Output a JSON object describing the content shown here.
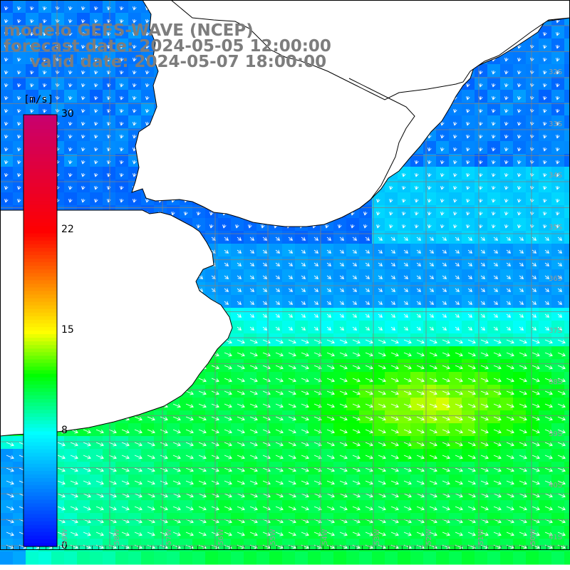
{
  "titles": {
    "line1": "modelo GEFS-WAVE (NCEP)",
    "line2": "forecast date: 2024-05-05 12:00:00",
    "line3": "valid date: 2024-05-07 18:00:00"
  },
  "colorbar": {
    "unit": "[m/s]",
    "ticks": [
      {
        "value": 30,
        "label": "30"
      },
      {
        "value": 22,
        "label": "22"
      },
      {
        "value": 15,
        "label": "15"
      },
      {
        "value": 8,
        "label": "8"
      },
      {
        "value": 0,
        "label": "0"
      }
    ],
    "color_stops": [
      {
        "value": 0,
        "color": "#0000ff"
      },
      {
        "value": 4,
        "color": "#007fff"
      },
      {
        "value": 8,
        "color": "#00ffff"
      },
      {
        "value": 12,
        "color": "#00ff00"
      },
      {
        "value": 15,
        "color": "#ffff00"
      },
      {
        "value": 22,
        "color": "#ff0000"
      },
      {
        "value": 30,
        "color": "#c8006e"
      }
    ]
  },
  "map": {
    "lon_range": [
      -60,
      -49
    ],
    "lat_range": [
      -42,
      -31
    ],
    "lat_labels": [
      "32S",
      "33S",
      "34S",
      "35S",
      "36S",
      "37S",
      "38S",
      "39S",
      "40S",
      "41S"
    ],
    "lon_labels": [
      "59W",
      "58W",
      "57W",
      "56W",
      "55W",
      "54W",
      "53W",
      "52W",
      "51W",
      "50W"
    ],
    "vector_color": "#ffffff",
    "land_color": "#ffffff",
    "coast_color": "#000000"
  }
}
